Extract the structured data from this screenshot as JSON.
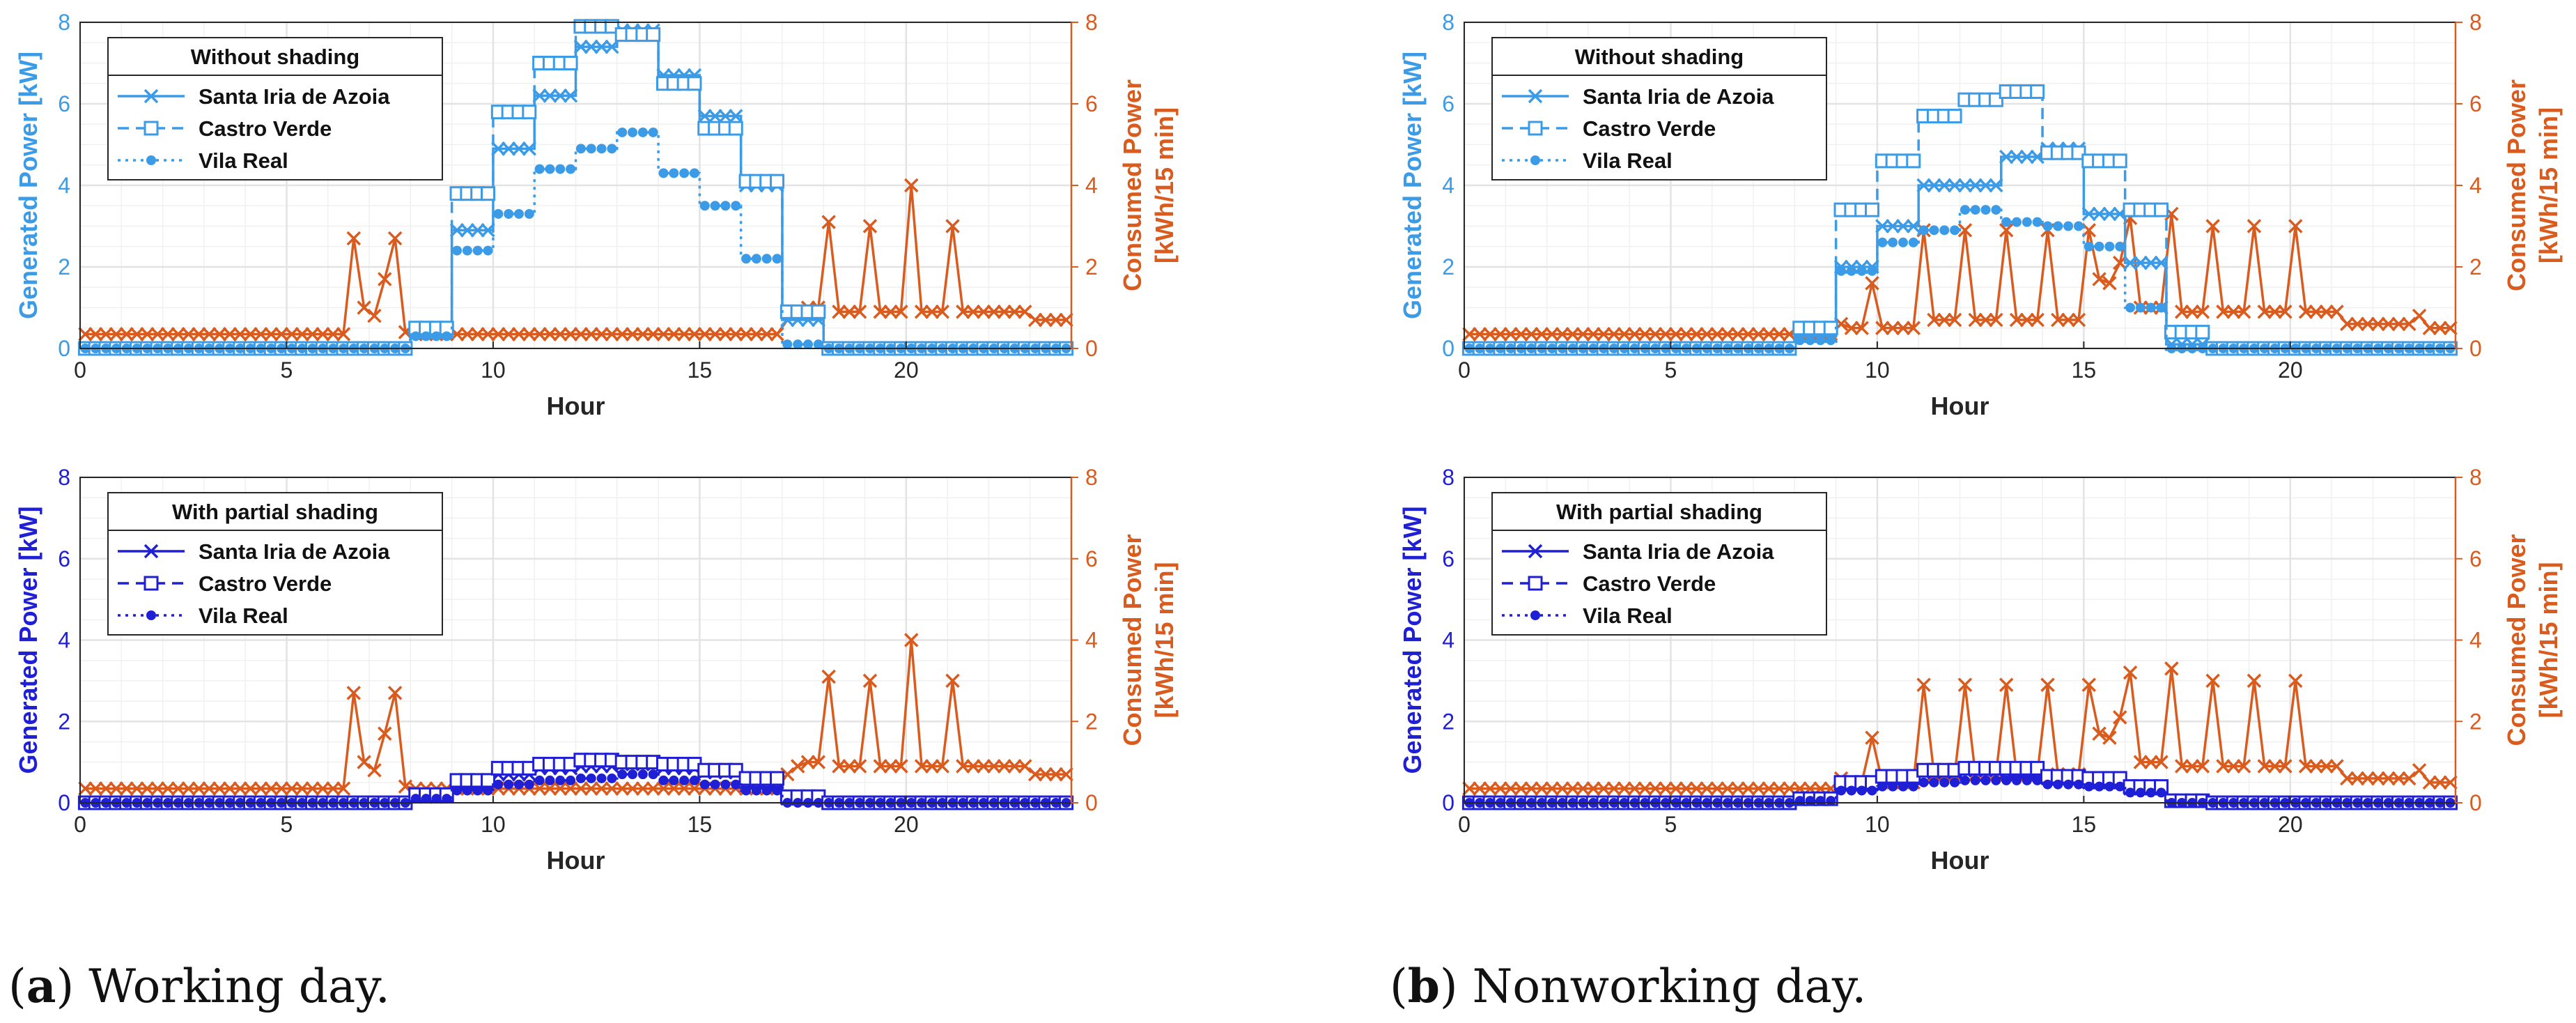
{
  "figure": {
    "captions": [
      {
        "letter": "a",
        "text": " Working day.",
        "open": "(",
        "close": ")"
      },
      {
        "letter": "b",
        "text": " Nonworking day.",
        "open": "(",
        "close": ")"
      }
    ]
  },
  "colors": {
    "light_blue": "#3c9be6",
    "dark_blue": "#1f1fd6",
    "orange": "#d95b1e",
    "grid": "#e3e3e3",
    "axis_text": "#262626"
  },
  "chart_data": [
    {
      "type": "line",
      "panel": "working-without-shading",
      "xlabel": "Hour",
      "ylabel_left": "Generated Power [kW]",
      "ylabel_right": [
        "Consumed Power",
        "[kWh/15 min]"
      ],
      "xlim": [
        0,
        24
      ],
      "ylim_left": [
        0,
        8
      ],
      "ylim_right": [
        0,
        8
      ],
      "xticks": [
        0,
        5,
        10,
        15,
        20
      ],
      "yticks": [
        0,
        2,
        4,
        6,
        8
      ],
      "grid": true,
      "legend_position": "top-left",
      "legend_title": "Without shading",
      "generation_series": [
        {
          "name": "Santa Iria de Azoia",
          "marker": "x",
          "dash": "solid",
          "hourly": [
            0,
            0,
            0,
            0,
            0,
            0,
            0,
            0,
            0.4,
            2.9,
            4.9,
            6.2,
            7.4,
            7.8,
            6.7,
            5.7,
            4.0,
            0.7,
            0,
            0,
            0,
            0,
            0,
            0
          ]
        },
        {
          "name": "Castro Verde",
          "marker": "square",
          "dash": "dashed",
          "hourly": [
            0,
            0,
            0,
            0,
            0,
            0,
            0,
            0,
            0.5,
            3.8,
            5.8,
            7.0,
            7.9,
            7.7,
            6.5,
            5.4,
            4.1,
            0.9,
            0,
            0,
            0,
            0,
            0,
            0
          ]
        },
        {
          "name": "Vila Real",
          "marker": "dot",
          "dash": "dotted",
          "hourly": [
            0,
            0,
            0,
            0,
            0,
            0,
            0,
            0,
            0.3,
            2.4,
            3.3,
            4.4,
            4.9,
            5.3,
            4.3,
            3.5,
            2.2,
            0.1,
            0,
            0,
            0,
            0,
            0,
            0
          ]
        }
      ],
      "consumption": {
        "name": "Consumed Power",
        "values": [
          0.35,
          0.35,
          0.35,
          0.35,
          0.35,
          0.35,
          0.35,
          0.35,
          0.35,
          0.35,
          0.35,
          0.35,
          0.35,
          0.35,
          0.35,
          0.35,
          0.35,
          0.35,
          0.35,
          0.35,
          0.35,
          0.35,
          0.35,
          0.35,
          0.35,
          0.35,
          2.7,
          1.0,
          0.8,
          1.7,
          2.7,
          0.4,
          0.35,
          0.35,
          0.35,
          0.35,
          0.35,
          0.35,
          0.35,
          0.35,
          0.35,
          0.35,
          0.35,
          0.35,
          0.35,
          0.35,
          0.35,
          0.35,
          0.35,
          0.35,
          0.35,
          0.35,
          0.35,
          0.35,
          0.35,
          0.35,
          0.35,
          0.35,
          0.35,
          0.35,
          0.35,
          0.35,
          0.35,
          0.35,
          0.35,
          0.35,
          0.35,
          0.35,
          0.7,
          0.9,
          1.0,
          1.0,
          3.1,
          0.9,
          0.9,
          0.9,
          3.0,
          0.9,
          0.9,
          0.9,
          4.0,
          0.9,
          0.9,
          0.9,
          3.0,
          0.9,
          0.9,
          0.9,
          0.9,
          0.9,
          0.9,
          0.9,
          0.7,
          0.7,
          0.7,
          0.7
        ]
      }
    },
    {
      "type": "line",
      "panel": "nonworking-without-shading",
      "xlabel": "Hour",
      "ylabel_left": "Generated Power [kW]",
      "ylabel_right": [
        "Consumed Power",
        "[kWh/15 min]"
      ],
      "xlim": [
        0,
        24
      ],
      "ylim_left": [
        0,
        8
      ],
      "ylim_right": [
        0,
        8
      ],
      "xticks": [
        0,
        5,
        10,
        15,
        20
      ],
      "yticks": [
        0,
        2,
        4,
        6,
        8
      ],
      "grid": true,
      "legend_position": "top-left",
      "legend_title": "Without shading",
      "generation_series": [
        {
          "name": "Santa Iria de Azoia",
          "marker": "x",
          "dash": "solid",
          "hourly": [
            0,
            0,
            0,
            0,
            0,
            0,
            0,
            0,
            0.3,
            2.0,
            3.0,
            4.0,
            4.0,
            4.7,
            4.9,
            3.3,
            2.1,
            0.1,
            0,
            0,
            0,
            0,
            0,
            0
          ]
        },
        {
          "name": "Castro Verde",
          "marker": "square",
          "dash": "dashed",
          "hourly": [
            0,
            0,
            0,
            0,
            0,
            0,
            0,
            0,
            0.5,
            3.4,
            4.6,
            5.7,
            6.1,
            6.3,
            4.8,
            4.6,
            3.4,
            0.4,
            0,
            0,
            0,
            0,
            0,
            0
          ]
        },
        {
          "name": "Vila Real",
          "marker": "dot",
          "dash": "dotted",
          "hourly": [
            0,
            0,
            0,
            0,
            0,
            0,
            0,
            0,
            0.2,
            1.9,
            2.6,
            2.9,
            3.4,
            3.1,
            3.0,
            2.5,
            1.0,
            0.0,
            0,
            0,
            0,
            0,
            0,
            0
          ]
        }
      ],
      "consumption": {
        "name": "Consumed Power",
        "values": [
          0.35,
          0.35,
          0.35,
          0.35,
          0.35,
          0.35,
          0.35,
          0.35,
          0.35,
          0.35,
          0.35,
          0.35,
          0.35,
          0.35,
          0.35,
          0.35,
          0.35,
          0.35,
          0.35,
          0.35,
          0.35,
          0.35,
          0.35,
          0.35,
          0.35,
          0.35,
          0.35,
          0.35,
          0.35,
          0.35,
          0.35,
          0.35,
          0.35,
          0.35,
          0.35,
          0.35,
          0.6,
          0.5,
          0.5,
          1.6,
          0.5,
          0.5,
          0.5,
          0.5,
          2.9,
          0.7,
          0.7,
          0.7,
          2.9,
          0.7,
          0.7,
          0.7,
          2.9,
          0.7,
          0.7,
          0.7,
          2.9,
          0.7,
          0.7,
          0.7,
          2.9,
          1.7,
          1.6,
          2.1,
          3.2,
          1.0,
          1.0,
          1.0,
          3.3,
          0.9,
          0.9,
          0.9,
          3.0,
          0.9,
          0.9,
          0.9,
          3.0,
          0.9,
          0.9,
          0.9,
          3.0,
          0.9,
          0.9,
          0.9,
          0.9,
          0.6,
          0.6,
          0.6,
          0.6,
          0.6,
          0.6,
          0.6,
          0.8,
          0.5,
          0.5,
          0.5
        ]
      }
    },
    {
      "type": "line",
      "panel": "working-with-partial-shading",
      "xlabel": "Hour",
      "ylabel_left": "Generated Power [kW]",
      "ylabel_right": [
        "Consumed Power",
        "[kWh/15 min]"
      ],
      "xlim": [
        0,
        24
      ],
      "ylim_left": [
        0,
        8
      ],
      "ylim_right": [
        0,
        8
      ],
      "xticks": [
        0,
        5,
        10,
        15,
        20
      ],
      "yticks": [
        0,
        2,
        4,
        6,
        8
      ],
      "grid": true,
      "legend_position": "top-left",
      "legend_title": "With partial shading",
      "generation_series": [
        {
          "name": "Santa Iria de Azoia",
          "marker": "x",
          "dash": "solid",
          "hourly": [
            0,
            0,
            0,
            0,
            0,
            0,
            0,
            0,
            0.15,
            0.45,
            0.7,
            0.85,
            0.9,
            0.95,
            0.85,
            0.75,
            0.5,
            0.1,
            0,
            0,
            0,
            0,
            0,
            0
          ]
        },
        {
          "name": "Castro Verde",
          "marker": "square",
          "dash": "dashed",
          "hourly": [
            0,
            0,
            0,
            0,
            0,
            0,
            0,
            0,
            0.2,
            0.55,
            0.85,
            0.95,
            1.05,
            1.0,
            0.95,
            0.8,
            0.6,
            0.15,
            0,
            0,
            0,
            0,
            0,
            0
          ]
        },
        {
          "name": "Vila Real",
          "marker": "dot",
          "dash": "dotted",
          "hourly": [
            0,
            0,
            0,
            0,
            0,
            0,
            0,
            0,
            0.1,
            0.3,
            0.45,
            0.55,
            0.6,
            0.7,
            0.55,
            0.45,
            0.3,
            0.0,
            0,
            0,
            0,
            0,
            0,
            0
          ]
        }
      ],
      "consumption": {
        "name": "Consumed Power",
        "values": [
          0.35,
          0.35,
          0.35,
          0.35,
          0.35,
          0.35,
          0.35,
          0.35,
          0.35,
          0.35,
          0.35,
          0.35,
          0.35,
          0.35,
          0.35,
          0.35,
          0.35,
          0.35,
          0.35,
          0.35,
          0.35,
          0.35,
          0.35,
          0.35,
          0.35,
          0.35,
          2.7,
          1.0,
          0.8,
          1.7,
          2.7,
          0.4,
          0.35,
          0.35,
          0.35,
          0.35,
          0.35,
          0.35,
          0.35,
          0.35,
          0.35,
          0.35,
          0.35,
          0.35,
          0.35,
          0.35,
          0.35,
          0.35,
          0.35,
          0.35,
          0.35,
          0.35,
          0.35,
          0.35,
          0.35,
          0.35,
          0.35,
          0.35,
          0.35,
          0.35,
          0.35,
          0.35,
          0.35,
          0.35,
          0.35,
          0.35,
          0.35,
          0.35,
          0.7,
          0.9,
          1.0,
          1.0,
          3.1,
          0.9,
          0.9,
          0.9,
          3.0,
          0.9,
          0.9,
          0.9,
          4.0,
          0.9,
          0.9,
          0.9,
          3.0,
          0.9,
          0.9,
          0.9,
          0.9,
          0.9,
          0.9,
          0.9,
          0.7,
          0.7,
          0.7,
          0.7
        ]
      }
    },
    {
      "type": "line",
      "panel": "nonworking-with-partial-shading",
      "xlabel": "Hour",
      "ylabel_left": "Generated Power [kW]",
      "ylabel_right": [
        "Consumed Power",
        "[kWh/15 min]"
      ],
      "xlim": [
        0,
        24
      ],
      "ylim_left": [
        0,
        8
      ],
      "ylim_right": [
        0,
        8
      ],
      "xticks": [
        0,
        5,
        10,
        15,
        20
      ],
      "yticks": [
        0,
        2,
        4,
        6,
        8
      ],
      "grid": true,
      "legend_position": "top-left",
      "legend_title": "With partial shading",
      "generation_series": [
        {
          "name": "Santa Iria de Azoia",
          "marker": "x",
          "dash": "solid",
          "hourly": [
            0,
            0,
            0,
            0,
            0,
            0,
            0,
            0,
            0.1,
            0.45,
            0.6,
            0.75,
            0.8,
            0.75,
            0.6,
            0.5,
            0.35,
            0.05,
            0,
            0,
            0,
            0,
            0,
            0
          ]
        },
        {
          "name": "Castro Verde",
          "marker": "square",
          "dash": "dashed",
          "hourly": [
            0,
            0,
            0,
            0,
            0,
            0,
            0,
            0,
            0.1,
            0.5,
            0.65,
            0.8,
            0.85,
            0.85,
            0.65,
            0.6,
            0.4,
            0.05,
            0,
            0,
            0,
            0,
            0,
            0
          ]
        },
        {
          "name": "Vila Real",
          "marker": "dot",
          "dash": "dotted",
          "hourly": [
            0,
            0,
            0,
            0,
            0,
            0,
            0,
            0,
            0.05,
            0.3,
            0.4,
            0.5,
            0.55,
            0.55,
            0.45,
            0.4,
            0.25,
            0.0,
            0,
            0,
            0,
            0,
            0,
            0
          ]
        }
      ],
      "consumption": {
        "name": "Consumed Power",
        "values": [
          0.35,
          0.35,
          0.35,
          0.35,
          0.35,
          0.35,
          0.35,
          0.35,
          0.35,
          0.35,
          0.35,
          0.35,
          0.35,
          0.35,
          0.35,
          0.35,
          0.35,
          0.35,
          0.35,
          0.35,
          0.35,
          0.35,
          0.35,
          0.35,
          0.35,
          0.35,
          0.35,
          0.35,
          0.35,
          0.35,
          0.35,
          0.35,
          0.35,
          0.35,
          0.35,
          0.35,
          0.6,
          0.5,
          0.5,
          1.6,
          0.5,
          0.5,
          0.5,
          0.5,
          2.9,
          0.7,
          0.7,
          0.7,
          2.9,
          0.7,
          0.7,
          0.7,
          2.9,
          0.7,
          0.7,
          0.7,
          2.9,
          0.7,
          0.7,
          0.7,
          2.9,
          1.7,
          1.6,
          2.1,
          3.2,
          1.0,
          1.0,
          1.0,
          3.3,
          0.9,
          0.9,
          0.9,
          3.0,
          0.9,
          0.9,
          0.9,
          3.0,
          0.9,
          0.9,
          0.9,
          3.0,
          0.9,
          0.9,
          0.9,
          0.9,
          0.6,
          0.6,
          0.6,
          0.6,
          0.6,
          0.6,
          0.6,
          0.8,
          0.5,
          0.5,
          0.5
        ]
      }
    }
  ]
}
